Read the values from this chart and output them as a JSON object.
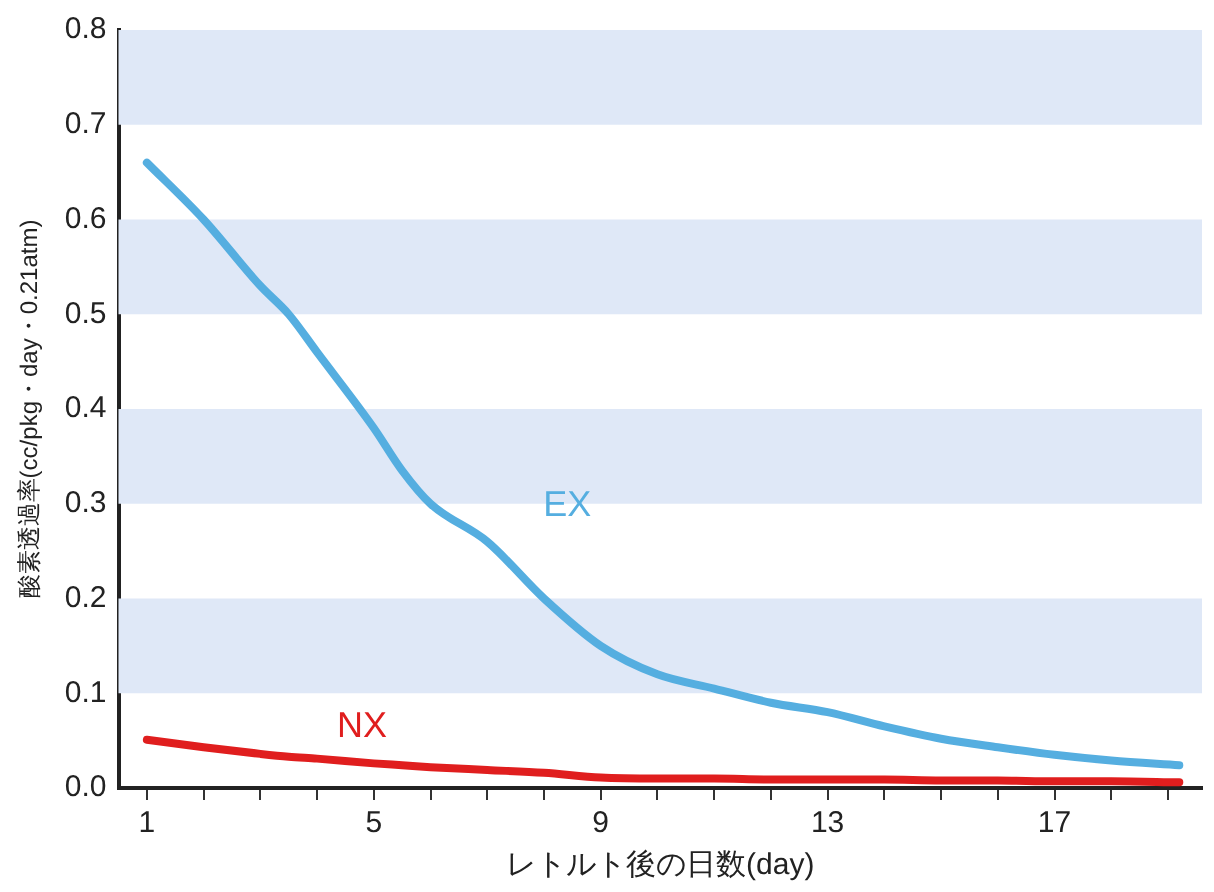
{
  "chart_data": {
    "type": "line",
    "xlabel": "レトルト後の日数(day)",
    "ylabel": "酸素透過率(cc/pkg・day・0.21atm)",
    "x": [
      1,
      2,
      3,
      3.5,
      4,
      5,
      5.5,
      6,
      7,
      8,
      9,
      10,
      11,
      12,
      13,
      14,
      15,
      16,
      17,
      18,
      19.2
    ],
    "series": [
      {
        "name": "EX",
        "color": "#55aee0",
        "values": [
          0.66,
          0.6,
          0.53,
          0.5,
          0.46,
          0.38,
          0.335,
          0.3,
          0.26,
          0.2,
          0.15,
          0.12,
          0.105,
          0.09,
          0.08,
          0.065,
          0.052,
          0.043,
          0.035,
          0.029,
          0.024
        ]
      },
      {
        "name": "NX",
        "color": "#e01e1e",
        "values": [
          0.051,
          0.043,
          0.036,
          0.033,
          0.031,
          0.026,
          0.024,
          0.022,
          0.019,
          0.016,
          0.011,
          0.01,
          0.01,
          0.009,
          0.009,
          0.009,
          0.008,
          0.008,
          0.007,
          0.007,
          0.006
        ]
      }
    ],
    "xlim": [
      0.5,
      19.6
    ],
    "xticks": [
      1,
      {
        "value": 2,
        "label": null
      },
      {
        "value": 3,
        "label": null
      },
      {
        "value": 4,
        "label": null
      },
      5,
      {
        "value": 6,
        "label": null
      },
      {
        "value": 7,
        "label": null
      },
      {
        "value": 8,
        "label": null
      },
      9,
      {
        "value": 10,
        "label": null
      },
      {
        "value": 11,
        "label": null
      },
      {
        "value": 12,
        "label": null
      },
      13,
      {
        "value": 14,
        "label": null
      },
      {
        "value": 15,
        "label": null
      },
      {
        "value": 16,
        "label": null
      },
      17,
      {
        "value": 18,
        "label": null
      },
      {
        "value": 19,
        "label": null
      }
    ],
    "ylim": [
      0,
      0.8
    ],
    "yticks": [
      {
        "value": 0,
        "label": "0.0"
      },
      0.1,
      0.2,
      0.3,
      0.4,
      0.5,
      0.6,
      0.7,
      0.8
    ],
    "bands": [
      {
        "axis": "y",
        "from": 0.7,
        "to": 0.8,
        "color": "#dfe8f7",
        "label": null
      },
      {
        "axis": "y",
        "from": 0.5,
        "to": 0.6,
        "color": "#dfe8f7",
        "label": null
      },
      {
        "axis": "y",
        "from": 0.3,
        "to": 0.4,
        "color": "#dfe8f7",
        "label": null
      },
      {
        "axis": "y",
        "from": 0.1,
        "to": 0.2,
        "color": "#dfe8f7",
        "label": null
      }
    ],
    "grid": false,
    "legend": false,
    "marker": "none",
    "line_style": "solid"
  }
}
